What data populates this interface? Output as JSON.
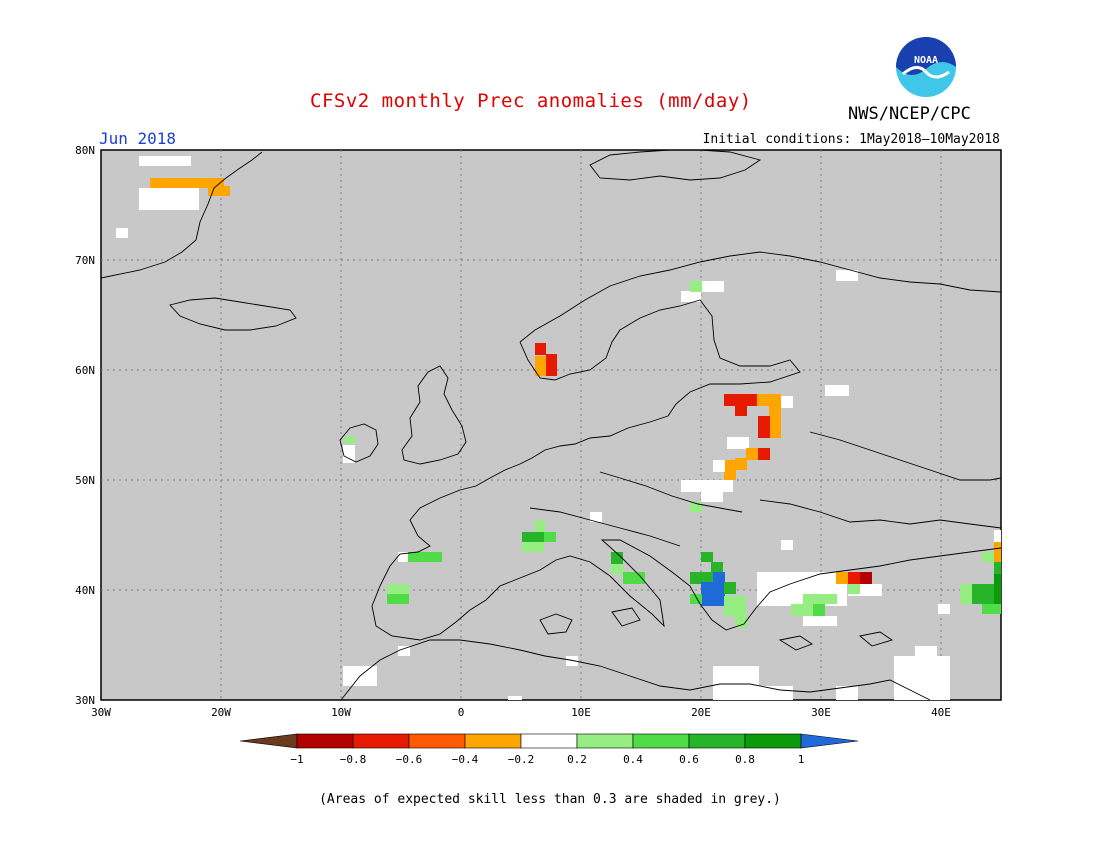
{
  "header": {
    "title": "CFSv2 monthly Prec anomalies (mm/day)",
    "month": "Jun 2018",
    "initial_conditions": "Initial conditions: 1May2018—10May2018",
    "agency": "NWS/NCEP/CPC",
    "logo_text": "NOAA"
  },
  "map": {
    "extent": {
      "lon": [
        -30,
        45
      ],
      "lat": [
        30,
        80
      ]
    },
    "lat_ticks": [
      "80N",
      "70N",
      "60N",
      "50N",
      "40N",
      "30N"
    ],
    "lon_ticks": [
      "30W",
      "20W",
      "10W",
      "0",
      "10E",
      "20E",
      "30E",
      "40E"
    ],
    "grid": true,
    "background": "#c8c8c8"
  },
  "colorbar": {
    "labels": [
      "−1",
      "−0.8",
      "−0.6",
      "−0.4",
      "−0.2",
      "0.2",
      "0.4",
      "0.6",
      "0.8",
      "1"
    ],
    "colors": [
      "#6b3a1e",
      "#b30000",
      "#e61a00",
      "#ff5a00",
      "#ffa500",
      "#ffffff",
      "#96ee82",
      "#50dc46",
      "#28b428",
      "#0a9a0a",
      "#1f6ad8"
    ]
  },
  "footnote": "(Areas of expected skill less than 0.3 are shaded in grey.)"
}
